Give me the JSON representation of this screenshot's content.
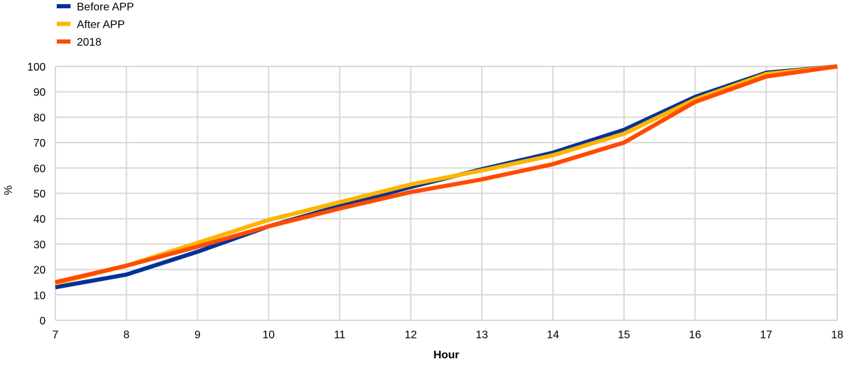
{
  "chart_data": {
    "type": "line",
    "title": "",
    "xlabel": "Hour",
    "ylabel": "%",
    "x": [
      7,
      8,
      9,
      10,
      11,
      12,
      13,
      14,
      15,
      16,
      17,
      18
    ],
    "xlim": [
      7,
      18
    ],
    "ylim": [
      0,
      100
    ],
    "yticks": [
      0,
      10,
      20,
      30,
      40,
      50,
      60,
      70,
      80,
      90,
      100
    ],
    "grid": true,
    "legend_position": "top-left",
    "series": [
      {
        "name": "Before APP",
        "color": "#003299",
        "values": [
          13,
          18,
          27,
          37,
          45,
          52.5,
          59.5,
          66,
          75,
          88,
          97.5,
          100
        ]
      },
      {
        "name": "After APP",
        "color": "#FFB400",
        "values": [
          14.5,
          21.5,
          30.5,
          39.5,
          46.5,
          53.5,
          59,
          65,
          73.5,
          87,
          97,
          100
        ]
      },
      {
        "name": "2018",
        "color": "#FF4B00",
        "values": [
          15,
          21.5,
          29,
          37,
          44,
          50.5,
          55.5,
          61.5,
          70,
          86,
          96,
          100
        ]
      }
    ]
  }
}
